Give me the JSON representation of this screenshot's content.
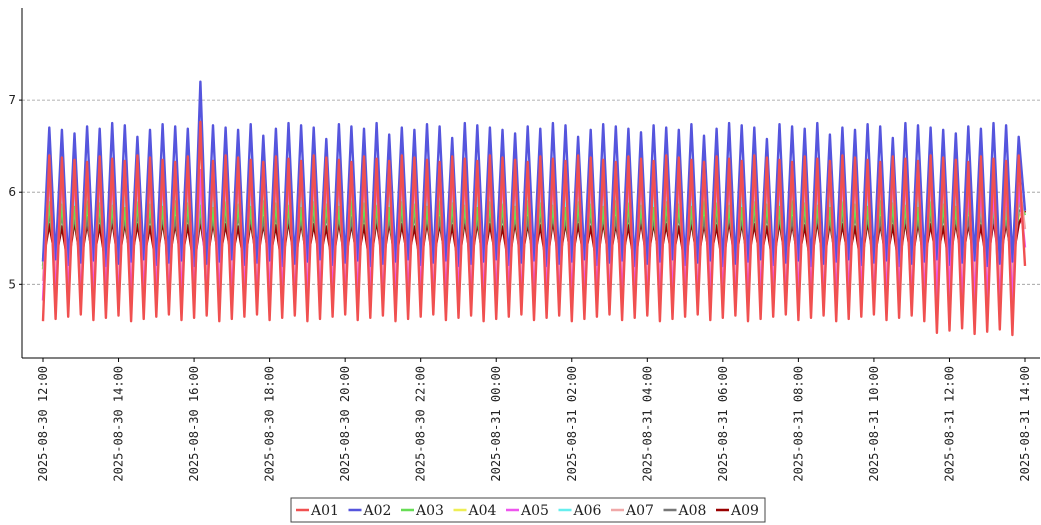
{
  "chart_data": {
    "type": "line",
    "title": "",
    "xlabel": "",
    "ylabel": "",
    "grid": "horizontal-dashed",
    "legend_position": "bottom-center",
    "x_range": [
      "2025-08-30 12:00",
      "2025-08-31 14:00"
    ],
    "ylim": [
      4.2,
      8.0
    ],
    "y_ticks": [
      5,
      6,
      7
    ],
    "x_ticks": [
      "2025-08-30 12:00",
      "2025-08-30 14:00",
      "2025-08-30 16:00",
      "2025-08-30 18:00",
      "2025-08-30 20:00",
      "2025-08-30 22:00",
      "2025-08-31 00:00",
      "2025-08-31 02:00",
      "2025-08-31 04:00",
      "2025-08-31 06:00",
      "2025-08-31 08:00",
      "2025-08-31 10:00",
      "2025-08-31 12:00",
      "2025-08-31 14:00"
    ],
    "cycles": 78,
    "series": [
      {
        "name": "A01",
        "color": "#f05050",
        "peak": 6.4,
        "trough": 4.6
      },
      {
        "name": "A02",
        "color": "#5555dd",
        "peak": 6.75,
        "trough": 5.2
      },
      {
        "name": "A03",
        "color": "#66dd55",
        "peak": 5.9,
        "trough": 5.15
      },
      {
        "name": "A04",
        "color": "#eeee55",
        "peak": 5.8,
        "trough": 5.2
      },
      {
        "name": "A05",
        "color": "#ee55ee",
        "peak": 6.3,
        "trough": 4.8
      },
      {
        "name": "A06",
        "color": "#66eeee",
        "peak": 6.0,
        "trough": 5.2
      },
      {
        "name": "A07",
        "color": "#f0a8a8",
        "peak": 6.2,
        "trough": 5.0
      },
      {
        "name": "A08",
        "color": "#777777",
        "peak": 5.8,
        "trough": 5.2
      },
      {
        "name": "A09",
        "color": "#990000",
        "peak": 5.7,
        "trough": 5.2
      }
    ]
  }
}
